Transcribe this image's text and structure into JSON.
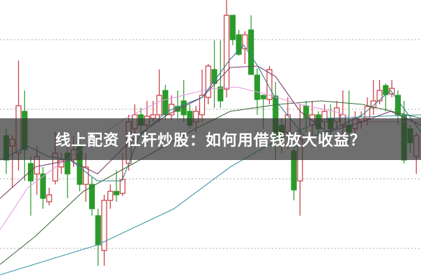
{
  "caption": "线上配资 杠杆炒股：如何用借钱放大收益？",
  "colors": {
    "up": "#c8363c",
    "down": "#2a9a2a",
    "grid": "#aaaaaa",
    "band": "#373737"
  },
  "chart_data": {
    "type": "candlestick",
    "title": "",
    "xlabel": "",
    "ylabel": "",
    "ylim": [
      0,
      400
    ],
    "grid": true,
    "grid_levels": [
      43,
      143,
      243,
      343
    ],
    "candles": [
      [
        205,
        170,
        215,
        150
      ],
      [
        190,
        200,
        205,
        130
      ],
      [
        180,
        248,
        313,
        155
      ],
      [
        240,
        185,
        270,
        140
      ],
      [
        165,
        140,
        175,
        90
      ],
      [
        150,
        175,
        190,
        120
      ],
      [
        150,
        115,
        160,
        100
      ],
      [
        110,
        120,
        130,
        105
      ],
      [
        140,
        180,
        210,
        135
      ],
      [
        160,
        170,
        180,
        150
      ],
      [
        180,
        150,
        195,
        115
      ],
      [
        170,
        185,
        205,
        160
      ],
      [
        190,
        135,
        200,
        125
      ],
      [
        135,
        160,
        180,
        110
      ],
      [
        135,
        100,
        145,
        90
      ],
      [
        90,
        48,
        100,
        18
      ],
      [
        40,
        112,
        120,
        18
      ],
      [
        112,
        125,
        135,
        100
      ],
      [
        125,
        120,
        155,
        110
      ],
      [
        122,
        142,
        180,
        118
      ],
      [
        165,
        225,
        235,
        155
      ],
      [
        215,
        235,
        250,
        200
      ],
      [
        235,
        220,
        245,
        210
      ],
      [
        220,
        233,
        255,
        215
      ],
      [
        230,
        235,
        255,
        225
      ],
      [
        235,
        263,
        300,
        225
      ],
      [
        270,
        235,
        278,
        228
      ],
      [
        235,
        250,
        263,
        228
      ],
      [
        247,
        240,
        270,
        230
      ],
      [
        255,
        235,
        285,
        225
      ],
      [
        240,
        220,
        250,
        215
      ],
      [
        225,
        240,
        248,
        210
      ],
      [
        235,
        263,
        300,
        225
      ],
      [
        260,
        305,
        308,
        250
      ],
      [
        300,
        280,
        342,
        245
      ],
      [
        275,
        255,
        342,
        245
      ],
      [
        272,
        378,
        400,
        260
      ],
      [
        378,
        343,
        378,
        335
      ],
      [
        350,
        322,
        357,
        320
      ],
      [
        330,
        350,
        355,
        308
      ],
      [
        357,
        293,
        378,
        293
      ],
      [
        292,
        257,
        302,
        235
      ],
      [
        263,
        258,
        264,
        215
      ],
      [
        257,
        300,
        305,
        250
      ],
      [
        262,
        200,
        282,
        170
      ],
      [
        220,
        200,
        230,
        180
      ],
      [
        210,
        235,
        260,
        185
      ],
      [
        183,
        127,
        193,
        112
      ],
      [
        140,
        200,
        250,
        90
      ],
      [
        248,
        230,
        255,
        210
      ],
      [
        220,
        235,
        255,
        205
      ],
      [
        235,
        215,
        240,
        205
      ],
      [
        225,
        240,
        250,
        215
      ],
      [
        230,
        215,
        250,
        200
      ],
      [
        225,
        245,
        255,
        215
      ],
      [
        220,
        235,
        270,
        200
      ],
      [
        220,
        210,
        270,
        190
      ],
      [
        215,
        230,
        240,
        205
      ],
      [
        225,
        232,
        240,
        215
      ],
      [
        230,
        247,
        260,
        220
      ],
      [
        245,
        255,
        285,
        235
      ],
      [
        255,
        270,
        285,
        250
      ],
      [
        277,
        264,
        280,
        240
      ],
      [
        265,
        273,
        285,
        260
      ],
      [
        263,
        235,
        270,
        220
      ],
      [
        235,
        170,
        255,
        165
      ],
      [
        215,
        195,
        220,
        180
      ],
      [
        175,
        205,
        210,
        150
      ]
    ],
    "candle_fields": [
      "open",
      "close",
      "high",
      "low"
    ],
    "moving_averages": [
      {
        "color": "#3a9aa8",
        "points": [
          [
            -1,
            5
          ],
          [
            14.9,
            48
          ],
          [
            27.4,
            100
          ],
          [
            36.6,
            160
          ],
          [
            44.5,
            200
          ],
          [
            52.5,
            230
          ],
          [
            67.8,
            235
          ]
        ]
      },
      {
        "color": "#3d6b3d",
        "points": [
          [
            -1,
            20
          ],
          [
            4.7,
            60
          ],
          [
            12.6,
            125
          ],
          [
            21.8,
            170
          ],
          [
            30.9,
            215
          ],
          [
            36.6,
            240
          ],
          [
            44.5,
            250
          ],
          [
            51.4,
            255
          ],
          [
            58.2,
            250
          ],
          [
            67.8,
            230
          ]
        ]
      },
      {
        "color": "#e79be0",
        "points": [
          [
            -1,
            70
          ],
          [
            3.5,
            130
          ],
          [
            8.1,
            160
          ],
          [
            13.8,
            195
          ],
          [
            19.5,
            230
          ],
          [
            25.2,
            255
          ],
          [
            33.1,
            272
          ],
          [
            37.7,
            275
          ],
          [
            42.3,
            265
          ],
          [
            48,
            250
          ],
          [
            53.6,
            240
          ],
          [
            58.2,
            225
          ],
          [
            67.8,
            225
          ]
        ]
      },
      {
        "color": "#7a3a6a",
        "points": [
          [
            -1,
            115
          ],
          [
            4.7,
            160
          ],
          [
            10.4,
            170
          ],
          [
            14.9,
            150
          ],
          [
            20.6,
            200
          ],
          [
            26.3,
            235
          ],
          [
            32,
            260
          ],
          [
            36.6,
            303
          ],
          [
            41.1,
            305
          ],
          [
            44,
            290
          ],
          [
            48,
            240
          ],
          [
            52.5,
            210
          ],
          [
            58.2,
            225
          ],
          [
            62.8,
            240
          ],
          [
            67.8,
            220
          ]
        ]
      },
      {
        "color": "#2f7f8a",
        "points": [
          [
            -1,
            170
          ],
          [
            3.5,
            190
          ],
          [
            6.9,
            175
          ],
          [
            10.4,
            170
          ],
          [
            14.9,
            140
          ],
          [
            18.9,
            140
          ],
          [
            21.8,
            205
          ],
          [
            26.3,
            240
          ],
          [
            32,
            260
          ],
          [
            36.6,
            315
          ],
          [
            38.8,
            335
          ],
          [
            41.1,
            305
          ],
          [
            44.5,
            250
          ],
          [
            49.1,
            200
          ],
          [
            53.6,
            215
          ],
          [
            58.2,
            235
          ],
          [
            62.8,
            270
          ],
          [
            67.8,
            210
          ]
        ]
      }
    ]
  }
}
